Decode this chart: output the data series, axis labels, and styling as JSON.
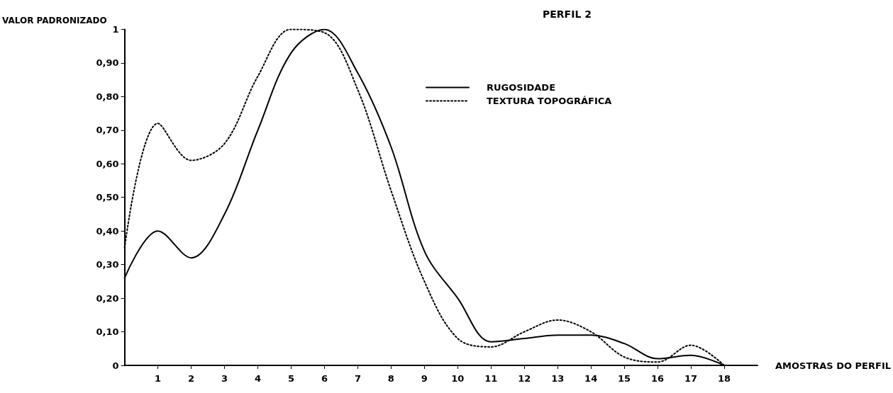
{
  "chart_data": {
    "type": "line",
    "title": "PERFIL 2",
    "xlabel": "AMOSTRAS DO PERFIL",
    "ylabel": "VALOR PADRONIZADO",
    "x": [
      0,
      1,
      2,
      3,
      4,
      5,
      6,
      7,
      8,
      9,
      10,
      11,
      12,
      13,
      14,
      15,
      16,
      17,
      18
    ],
    "xlim": [
      0,
      19
    ],
    "xticks": [
      1,
      2,
      3,
      4,
      5,
      6,
      7,
      8,
      9,
      10,
      11,
      12,
      13,
      14,
      15,
      16,
      17,
      18
    ],
    "ylim": [
      0,
      1
    ],
    "yticks": [
      0,
      {
        "value": 0.1,
        "label": "0,10"
      },
      {
        "value": 0.2,
        "label": "0,20"
      },
      {
        "value": 0.3,
        "label": "0,30"
      },
      {
        "value": 0.4,
        "label": "0,40"
      },
      {
        "value": 0.5,
        "label": "0,50"
      },
      {
        "value": 0.6,
        "label": "0,60"
      },
      {
        "value": 0.7,
        "label": "0,70"
      },
      {
        "value": 0.8,
        "label": "0,80"
      },
      {
        "value": 0.9,
        "label": "0,90"
      },
      1
    ],
    "grid": false,
    "legend": "top right",
    "marker": "none",
    "series": [
      {
        "name": "RUGOSIDADE",
        "color": "#000000",
        "line_style": "solid",
        "values": [
          0.26,
          0.4,
          0.32,
          0.45,
          0.7,
          0.93,
          1.0,
          0.87,
          0.65,
          0.34,
          0.2,
          0.07,
          0.08,
          0.09,
          0.09,
          0.065,
          0.02,
          0.03,
          0
        ]
      },
      {
        "name": "TEXTURA TOPOGRÁFICA",
        "color": "#000000",
        "line_style": "dotted",
        "values": [
          0.35,
          0.72,
          0.61,
          0.66,
          0.86,
          1.0,
          0.99,
          0.82,
          0.52,
          0.25,
          0.08,
          0.055,
          0.1,
          0.135,
          0.1,
          0.025,
          0.01,
          0.06,
          0
        ]
      }
    ]
  }
}
